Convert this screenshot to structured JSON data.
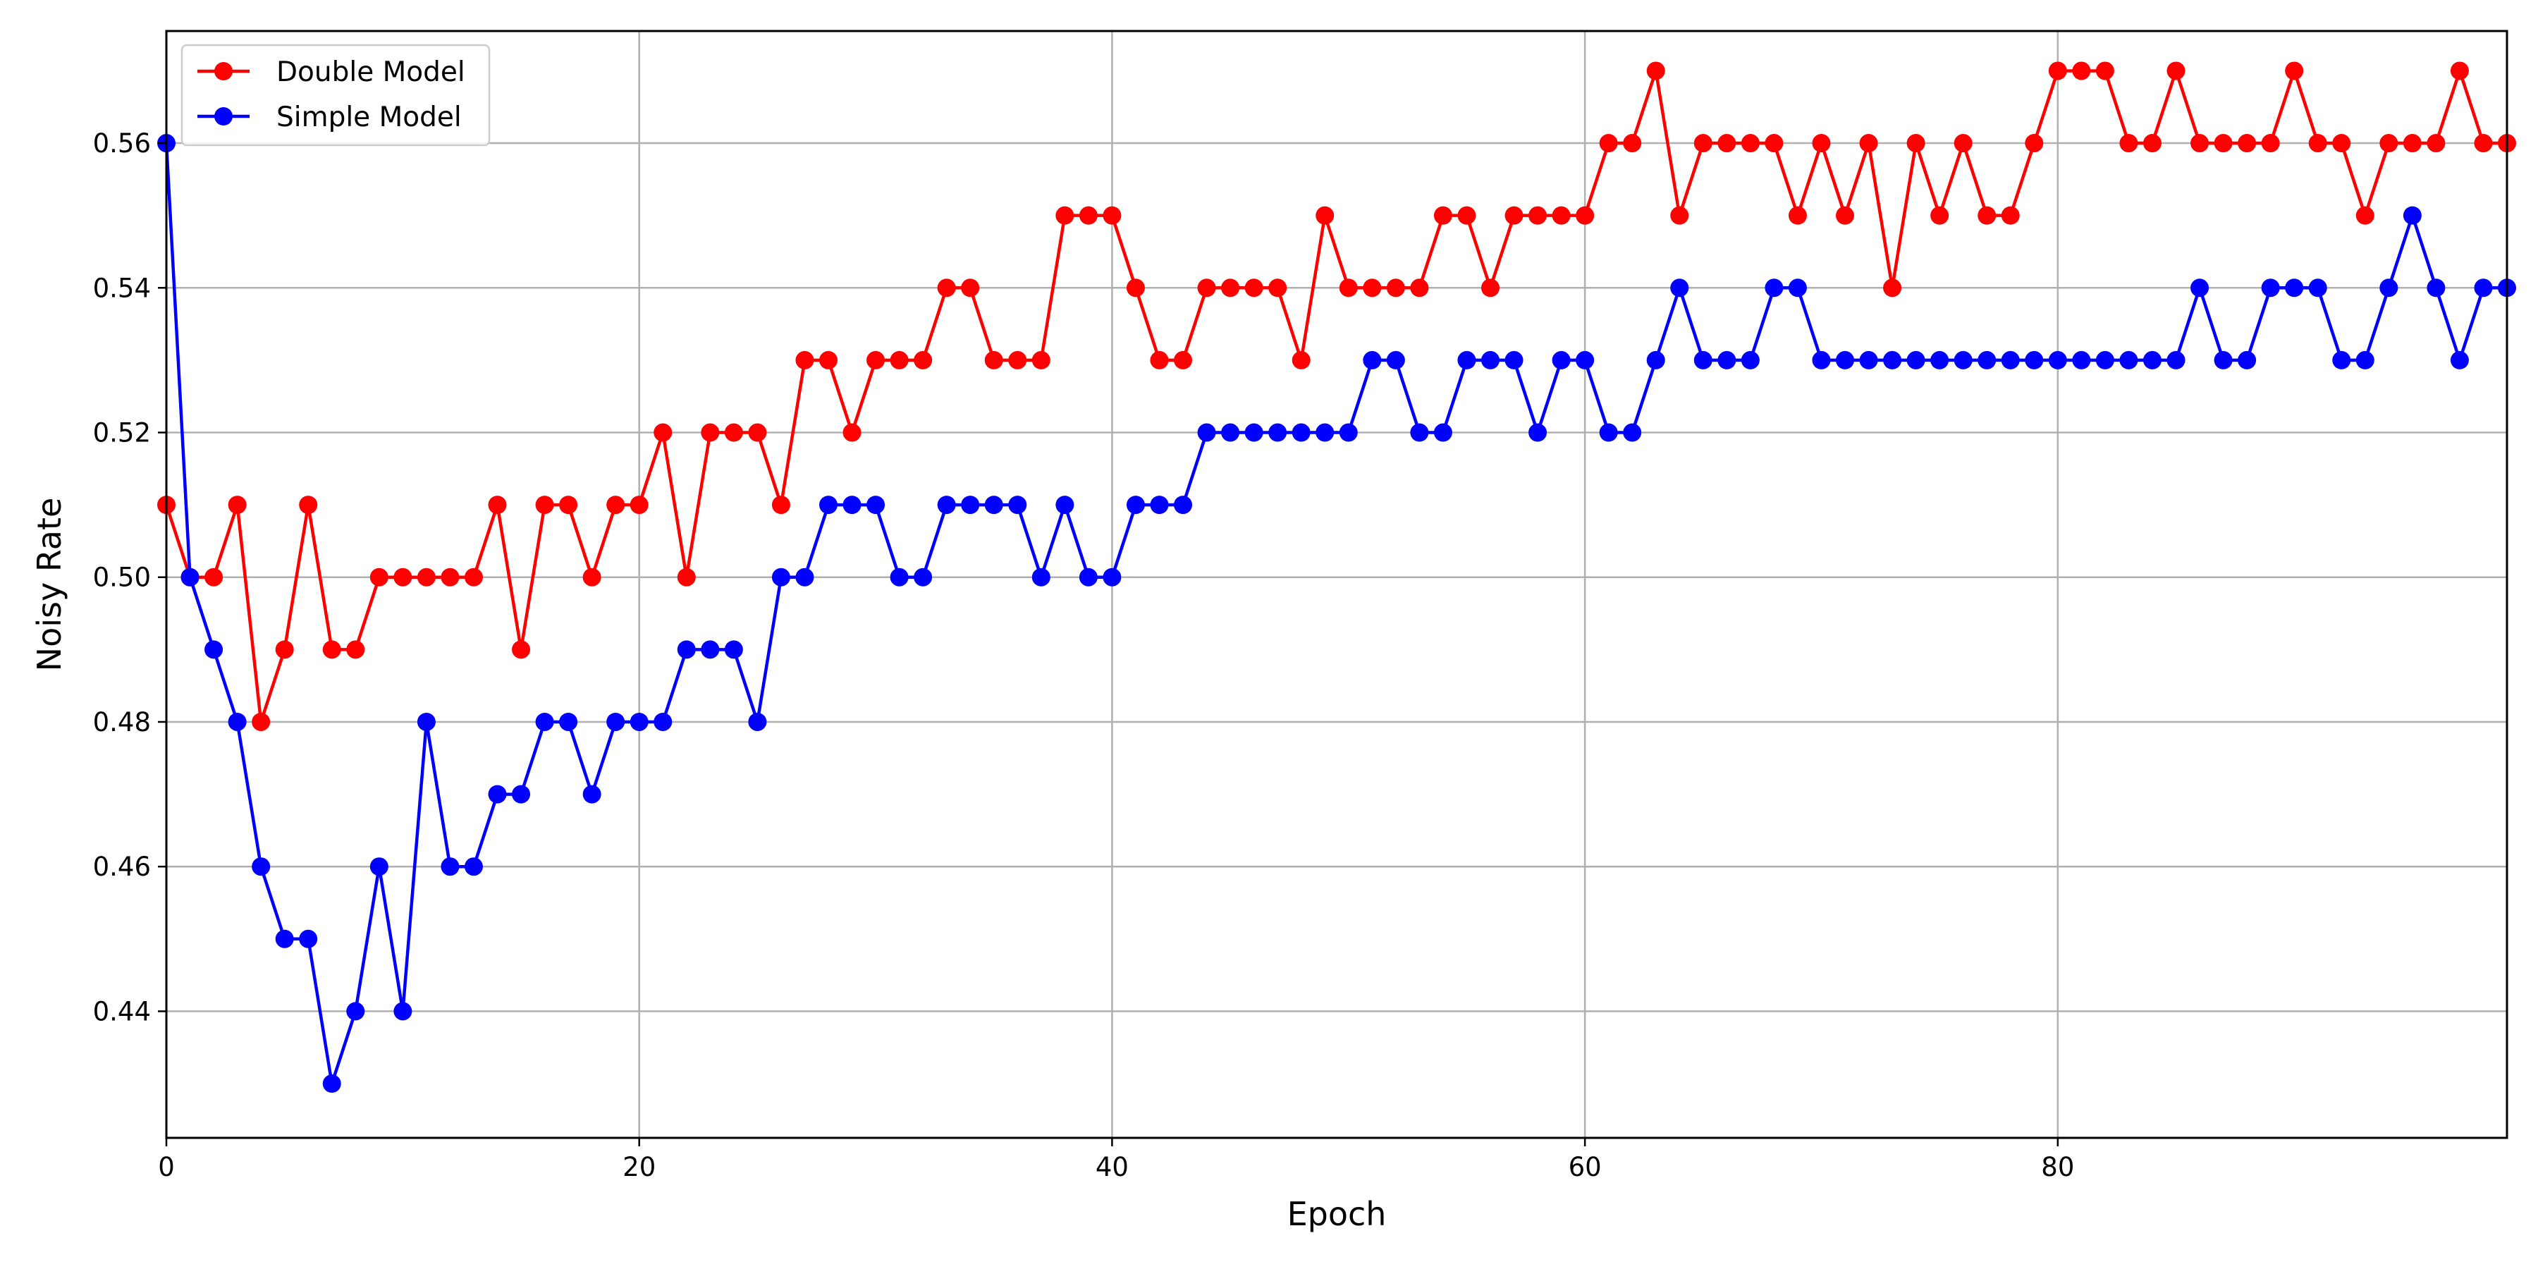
{
  "chart_data": {
    "type": "line",
    "title": "",
    "xlabel": "Epoch",
    "ylabel": "Noisy Rate",
    "xlim": [
      0,
      99
    ],
    "ylim": [
      0.4225,
      0.5755
    ],
    "xticks": [
      0,
      20,
      40,
      60,
      80
    ],
    "yticks": [
      0.44,
      0.46,
      0.48,
      0.5,
      0.52,
      0.54,
      0.56
    ],
    "ytick_labels": [
      "0.44",
      "0.46",
      "0.48",
      "0.50",
      "0.52",
      "0.54",
      "0.56"
    ],
    "grid": true,
    "legend_position": "top-left",
    "series": [
      {
        "name": "Double Model",
        "color": "#ff0000",
        "marker": "circle",
        "values": [
          0.51,
          0.5,
          0.5,
          0.51,
          0.48,
          0.49,
          0.51,
          0.49,
          0.49,
          0.5,
          0.5,
          0.5,
          0.5,
          0.5,
          0.51,
          0.49,
          0.51,
          0.51,
          0.5,
          0.51,
          0.51,
          0.52,
          0.5,
          0.52,
          0.52,
          0.52,
          0.51,
          0.53,
          0.53,
          0.52,
          0.53,
          0.53,
          0.53,
          0.54,
          0.54,
          0.53,
          0.53,
          0.53,
          0.55,
          0.55,
          0.55,
          0.54,
          0.53,
          0.53,
          0.54,
          0.54,
          0.54,
          0.54,
          0.53,
          0.55,
          0.54,
          0.54,
          0.54,
          0.54,
          0.55,
          0.55,
          0.54,
          0.55,
          0.55,
          0.55,
          0.55,
          0.56,
          0.56,
          0.57,
          0.55,
          0.56,
          0.56,
          0.56,
          0.56,
          0.55,
          0.56,
          0.55,
          0.56,
          0.54,
          0.56,
          0.55,
          0.56,
          0.55,
          0.55,
          0.56,
          0.57,
          0.57,
          0.57,
          0.56,
          0.56,
          0.57,
          0.56,
          0.56,
          0.56,
          0.56,
          0.57,
          0.56,
          0.56,
          0.55,
          0.56,
          0.56,
          0.56,
          0.57,
          0.56,
          0.56
        ]
      },
      {
        "name": "Simple Model",
        "color": "#0000ff",
        "marker": "circle",
        "values": [
          0.56,
          0.5,
          0.49,
          0.48,
          0.46,
          0.45,
          0.45,
          0.43,
          0.44,
          0.46,
          0.44,
          0.48,
          0.46,
          0.46,
          0.47,
          0.47,
          0.48,
          0.48,
          0.47,
          0.48,
          0.48,
          0.48,
          0.49,
          0.49,
          0.49,
          0.48,
          0.5,
          0.5,
          0.51,
          0.51,
          0.51,
          0.5,
          0.5,
          0.51,
          0.51,
          0.51,
          0.51,
          0.5,
          0.51,
          0.5,
          0.5,
          0.51,
          0.51,
          0.51,
          0.52,
          0.52,
          0.52,
          0.52,
          0.52,
          0.52,
          0.52,
          0.53,
          0.53,
          0.52,
          0.52,
          0.53,
          0.53,
          0.53,
          0.52,
          0.53,
          0.53,
          0.52,
          0.52,
          0.53,
          0.54,
          0.53,
          0.53,
          0.53,
          0.54,
          0.54,
          0.53,
          0.53,
          0.53,
          0.53,
          0.53,
          0.53,
          0.53,
          0.53,
          0.53,
          0.53,
          0.53,
          0.53,
          0.53,
          0.53,
          0.53,
          0.53,
          0.54,
          0.53,
          0.53,
          0.54,
          0.54,
          0.54,
          0.53,
          0.53,
          0.54,
          0.55,
          0.54,
          0.53,
          0.54,
          0.54
        ]
      }
    ]
  }
}
